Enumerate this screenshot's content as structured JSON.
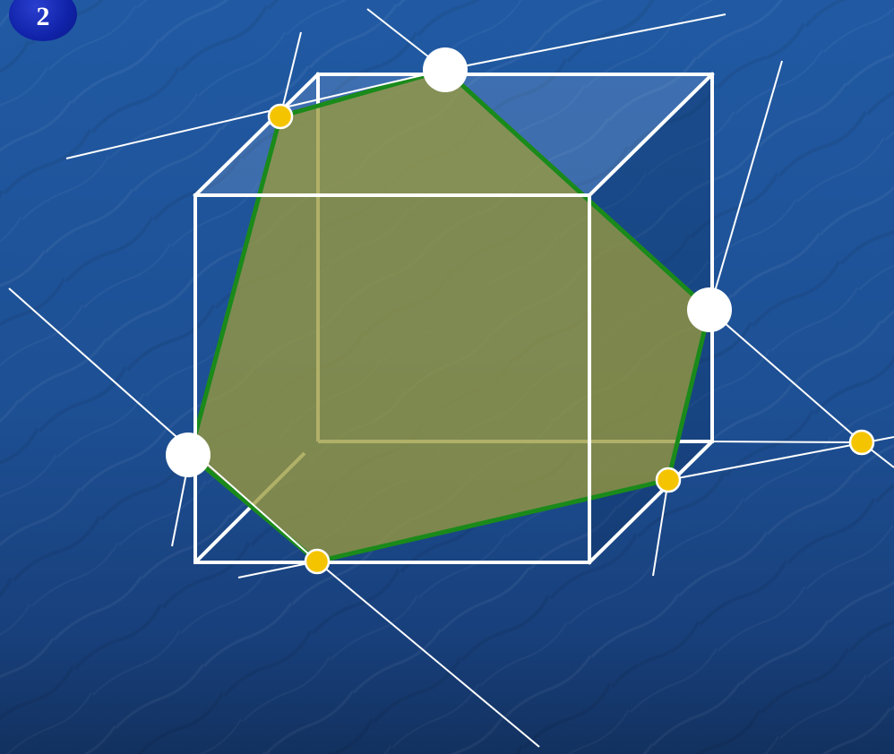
{
  "slide": {
    "number": "2"
  },
  "colors": {
    "background": "#1e4f94",
    "cube_edges": "#ffffff",
    "section_fill": "#8a8f4a",
    "section_border": "#1a8a1a",
    "given_points": "#ffffff",
    "constructed_points": "#f5c400",
    "construction_lines": "#ffffff"
  }
}
